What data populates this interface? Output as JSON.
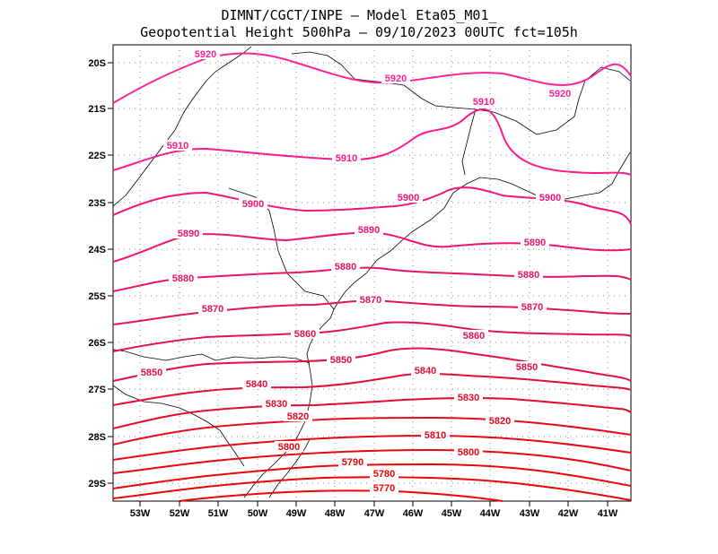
{
  "header": {
    "line1": "DIMNT/CGCT/INPE –  Model Eta05_M01_",
    "line2": "Geopotential Height 500hPa –  09/10/2023 00UTC fct=105h"
  },
  "axes": {
    "lat_labels": [
      "20S",
      "21S",
      "22S",
      "23S",
      "24S",
      "25S",
      "26S",
      "27S",
      "28S",
      "29S"
    ],
    "lon_labels": [
      "53W",
      "52W",
      "51W",
      "50W",
      "49W",
      "48W",
      "47W",
      "46W",
      "45W",
      "44W",
      "43W",
      "42W",
      "41W"
    ]
  },
  "contours": [
    {
      "value": 5920,
      "color": "#ff2299",
      "labels": [
        "5920",
        "5920",
        "5920"
      ]
    },
    {
      "value": 5910,
      "color": "#ff1a8c",
      "labels": [
        "5910",
        "5910",
        "5910"
      ]
    },
    {
      "value": 5900,
      "color": "#f5157a",
      "labels": [
        "5900",
        "5900",
        "5900"
      ]
    },
    {
      "value": 5890,
      "color": "#ee1470",
      "labels": [
        "5890",
        "5890",
        "5890"
      ]
    },
    {
      "value": 5880,
      "color": "#e81466",
      "labels": [
        "5880",
        "5880",
        "5880"
      ]
    },
    {
      "value": 5870,
      "color": "#e5135c",
      "labels": [
        "5870",
        "5870",
        "5870"
      ]
    },
    {
      "value": 5860,
      "color": "#e31250",
      "labels": [
        "5860",
        "5860"
      ]
    },
    {
      "value": 5850,
      "color": "#e31043",
      "labels": [
        "5850",
        "5850",
        "5850"
      ]
    },
    {
      "value": 5840,
      "color": "#e30e36",
      "labels": [
        "5840",
        "5840"
      ]
    },
    {
      "value": 5830,
      "color": "#e30c2a",
      "labels": [
        "5830",
        "5830"
      ]
    },
    {
      "value": 5820,
      "color": "#e50a20",
      "labels": [
        "5820",
        "5820"
      ]
    },
    {
      "value": 5810,
      "color": "#e80816",
      "labels": [
        "5810"
      ]
    },
    {
      "value": 5800,
      "color": "#ea060e",
      "labels": [
        "5800",
        "5800"
      ]
    },
    {
      "value": 5790,
      "color": "#ec0508",
      "labels": [
        "5790"
      ]
    },
    {
      "value": 5780,
      "color": "#ee0404",
      "labels": [
        "5780"
      ]
    },
    {
      "value": 5770,
      "color": "#f00404",
      "labels": [
        "5770"
      ]
    }
  ],
  "colors": {
    "coastline": "#000000",
    "grid": "#888888"
  }
}
